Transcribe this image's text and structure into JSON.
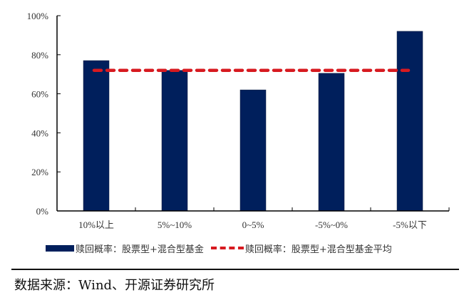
{
  "chart_data": {
    "type": "bar",
    "title": "",
    "xlabel": "",
    "ylabel": "",
    "categories": [
      "10%以上",
      "5%~10%",
      "0~5%",
      "-5%~0%",
      "-5%以下"
    ],
    "series": [
      {
        "name": "赎回概率：股票型+混合型基金",
        "type": "bar",
        "color": "#001f5c",
        "values": [
          77,
          72,
          62,
          70.5,
          92
        ]
      },
      {
        "name": "赎回概率：股票型+混合型基金平均",
        "type": "line",
        "style": "dashed",
        "color": "#d71a20",
        "values": [
          72,
          72,
          72,
          72,
          72
        ]
      }
    ],
    "ylim": [
      0,
      100
    ],
    "yticks": [
      "0%",
      "20%",
      "40%",
      "60%",
      "80%",
      "100%"
    ],
    "grid": false,
    "legend_position": "bottom"
  },
  "legend": {
    "bar_label": "赎回概率：股票型+混合型基金",
    "line_label": "赎回概率：股票型+混合型基金平均"
  },
  "source": "数据来源：Wind、开源证券研究所"
}
